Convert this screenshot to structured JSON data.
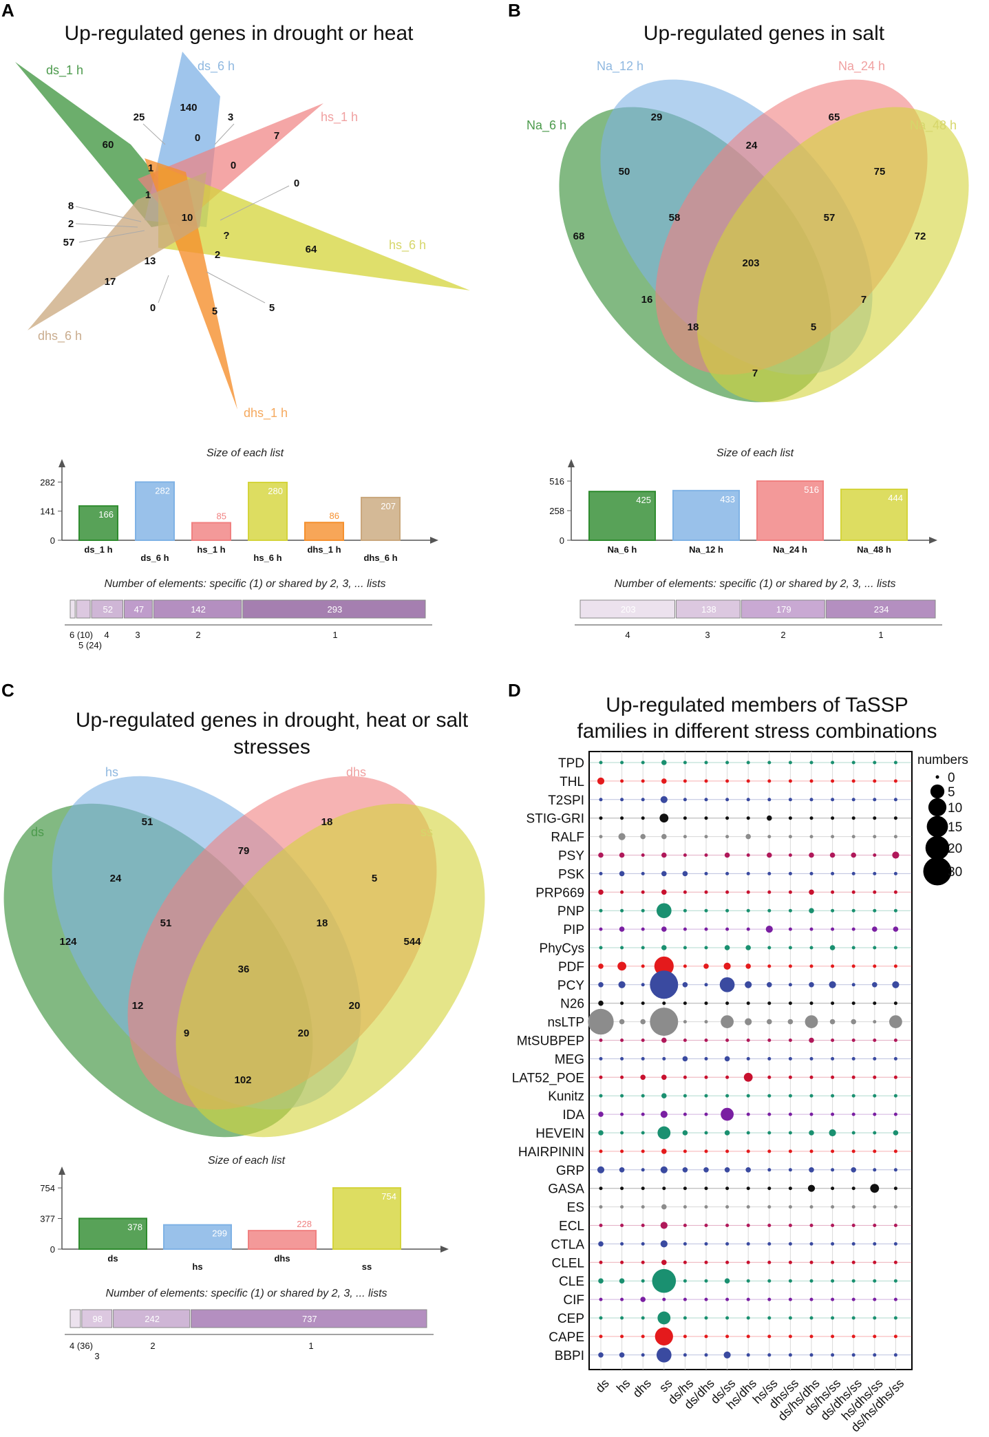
{
  "panels": {
    "A": {
      "label": "A",
      "title": "Up-regulated genes in drought or heat",
      "sets": [
        "ds_1 h",
        "ds_6 h",
        "hs_1 h",
        "hs_6 h",
        "dhs_1 h",
        "dhs_6 h"
      ],
      "counts": [
        "60",
        "25",
        "140",
        "3",
        "7",
        "0",
        "0",
        "0",
        "1",
        "1",
        "10",
        "?",
        "8",
        "2",
        "57",
        "2",
        "64",
        "13",
        "17",
        "0",
        "5",
        "5"
      ]
    },
    "B": {
      "label": "B",
      "title": "Up-regulated genes in salt",
      "sets": [
        "Na_6 h",
        "Na_12 h",
        "Na_24 h",
        "Na_48 h"
      ],
      "counts": [
        "68",
        "29",
        "65",
        "72",
        "50",
        "24",
        "75",
        "58",
        "57",
        "203",
        "16",
        "7",
        "18",
        "5",
        "7"
      ]
    },
    "C": {
      "label": "C",
      "title_line1": "Up-regulated genes in drought, heat or salt",
      "title_line2": "stresses",
      "sets": [
        "ds",
        "hs",
        "dhs",
        "ss"
      ],
      "counts": [
        "124",
        "51",
        "18",
        "544",
        "24",
        "79",
        "5",
        "51",
        "18",
        "36",
        "12",
        "20",
        "9",
        "20",
        "102"
      ]
    },
    "D": {
      "label": "D",
      "title_line1": "Up-regulated members of TaSSP",
      "title_line2": "families in different stress combinations"
    }
  },
  "chart_data": [
    {
      "type": "bar",
      "panel": "A",
      "title": "Size of each list",
      "categories": [
        "ds_1 h",
        "ds_6 h",
        "hs_1 h",
        "hs_6 h",
        "dhs_1 h",
        "dhs_6 h"
      ],
      "values": [
        166,
        282,
        85,
        280,
        86,
        207
      ],
      "yticks": [
        0,
        141,
        282
      ],
      "ylim": [
        0,
        300
      ],
      "colors": [
        "#2e8b2e",
        "#7fb2e5",
        "#f08080",
        "#d4d43a",
        "#f5902e",
        "#c9a77c"
      ]
    },
    {
      "type": "bar",
      "panel": "A",
      "title": "Number of elements: specific (1) or shared by 2, 3, ... lists",
      "categories": [
        "6",
        "5",
        "4",
        "3",
        "2",
        "1"
      ],
      "values": [
        10,
        24,
        52,
        47,
        142,
        293
      ],
      "shown_labels": [
        "",
        "",
        "52",
        "47",
        "142",
        "293"
      ],
      "axis_labels": [
        "6 (10)",
        "5 (24)",
        "4",
        "3",
        "2",
        "1"
      ]
    },
    {
      "type": "bar",
      "panel": "B",
      "title": "Size of each list",
      "categories": [
        "Na_6 h",
        "Na_12 h",
        "Na_24 h",
        "Na_48 h"
      ],
      "values": [
        425,
        433,
        516,
        444
      ],
      "yticks": [
        0,
        258,
        516
      ],
      "ylim": [
        0,
        540
      ],
      "colors": [
        "#2e8b2e",
        "#7fb2e5",
        "#f08080",
        "#d4d43a"
      ]
    },
    {
      "type": "bar",
      "panel": "B",
      "title": "Number of elements: specific (1) or shared by 2, 3, ... lists",
      "categories": [
        "4",
        "3",
        "2",
        "1"
      ],
      "values": [
        203,
        138,
        179,
        234
      ],
      "shown_labels": [
        "203",
        "138",
        "179",
        "234"
      ],
      "axis_labels": [
        "4",
        "3",
        "2",
        "1"
      ]
    },
    {
      "type": "bar",
      "panel": "C",
      "title": "Size of each list",
      "categories": [
        "ds",
        "hs",
        "dhs",
        "ss"
      ],
      "values": [
        378,
        299,
        228,
        754
      ],
      "yticks": [
        0,
        377,
        754
      ],
      "ylim": [
        0,
        780
      ],
      "colors": [
        "#2e8b2e",
        "#7fb2e5",
        "#f08080",
        "#d4d43a"
      ]
    },
    {
      "type": "bar",
      "panel": "C",
      "title": "Number of elements: specific (1) or shared by 2, 3, ... lists",
      "categories": [
        "4",
        "3",
        "2",
        "1"
      ],
      "values": [
        36,
        98,
        242,
        737
      ],
      "shown_labels": [
        "",
        "98",
        "242",
        "737"
      ],
      "axis_labels": [
        "4 (36)",
        "3",
        "2",
        "1"
      ]
    },
    {
      "type": "scatter",
      "panel": "D",
      "title": "Up-regulated members of TaSSP families in different stress combinations",
      "columns": [
        "ds",
        "hs",
        "dhs",
        "ss",
        "ds/hs",
        "ds/dhs",
        "ds/ss",
        "hs/dhs",
        "hs/ss",
        "dhs/ss",
        "ds/hs/dhs",
        "ds/hs/ss",
        "ds/dhs/ss",
        "hs/dhs/ss",
        "ds/hs/dhs/ss"
      ],
      "rows": [
        "TPD",
        "THL",
        "T2SPI",
        "STIG-GRI",
        "RALF",
        "PSY",
        "PSK",
        "PRP669",
        "PNP",
        "PIP",
        "PhyCys",
        "PDF",
        "PCY",
        "N26",
        "nsLTP",
        "MtSUBPEP",
        "MEG",
        "LAT52_POE",
        "Kunitz",
        "IDA",
        "HEVEIN",
        "HAIRPININ",
        "GRP",
        "GASA",
        "ES",
        "ECL",
        "CTLA",
        "CLEL",
        "CLE",
        "CIF",
        "CEP",
        "CAPE",
        "BBPI"
      ],
      "row_colors": [
        "#1a9070",
        "#e41a1c",
        "#3a4aa0",
        "#111111",
        "#8c8c8c",
        "#b0185a",
        "#3a4aa0",
        "#c8102e",
        "#1a9070",
        "#7a1fa2",
        "#1a9070",
        "#e41a1c",
        "#3a4aa0",
        "#111111",
        "#8c8c8c",
        "#b0185a",
        "#3a4aa0",
        "#c8102e",
        "#1a9070",
        "#7a1fa2",
        "#1a9070",
        "#e41a1c",
        "#3a4aa0",
        "#111111",
        "#8c8c8c",
        "#b0185a",
        "#3a4aa0",
        "#c8102e",
        "#1a9070",
        "#7a1fa2",
        "#1a9070",
        "#e41a1c",
        "#3a4aa0"
      ],
      "values": [
        [
          0,
          0,
          0,
          1,
          0,
          0,
          0,
          0,
          0,
          0,
          0,
          0,
          0,
          0,
          0
        ],
        [
          2,
          0,
          0,
          1,
          0,
          0,
          0,
          0,
          0,
          0,
          0,
          0,
          0,
          0,
          0
        ],
        [
          0,
          0,
          0,
          2,
          0,
          0,
          0,
          0,
          0,
          0,
          0,
          0,
          0,
          0,
          0
        ],
        [
          0,
          0,
          0,
          3,
          0,
          0,
          0,
          0,
          1,
          0,
          0,
          0,
          0,
          0,
          0
        ],
        [
          0,
          2,
          1,
          1,
          0,
          0,
          0,
          1,
          0,
          0,
          0,
          0,
          0,
          0,
          0
        ],
        [
          1,
          1,
          0,
          1,
          0,
          0,
          1,
          0,
          1,
          0,
          1,
          1,
          1,
          0,
          2
        ],
        [
          0,
          1,
          0,
          1,
          1,
          0,
          0,
          0,
          0,
          0,
          0,
          0,
          0,
          0,
          0
        ],
        [
          1,
          0,
          0,
          1,
          0,
          0,
          0,
          0,
          0,
          0,
          1,
          0,
          0,
          0,
          0
        ],
        [
          0,
          0,
          0,
          6,
          0,
          0,
          0,
          0,
          0,
          0,
          1,
          0,
          0,
          0,
          0
        ],
        [
          0,
          1,
          0,
          1,
          0,
          0,
          0,
          0,
          2,
          0,
          0,
          0,
          0,
          1,
          1
        ],
        [
          0,
          0,
          0,
          1,
          0,
          0,
          1,
          1,
          0,
          0,
          0,
          1,
          0,
          0,
          0
        ],
        [
          1,
          3,
          0,
          12,
          0,
          1,
          2,
          1,
          0,
          0,
          0,
          0,
          0,
          0,
          0
        ],
        [
          1,
          2,
          0,
          30,
          1,
          0,
          6,
          2,
          1,
          0,
          1,
          2,
          0,
          1,
          2
        ],
        [
          1,
          0,
          0,
          0,
          0,
          0,
          0,
          0,
          0,
          0,
          0,
          0,
          0,
          0,
          0
        ],
        [
          24,
          1,
          1,
          30,
          0,
          0,
          4,
          2,
          1,
          1,
          4,
          1,
          1,
          0,
          4
        ],
        [
          0,
          0,
          0,
          1,
          0,
          0,
          0,
          0,
          0,
          0,
          1,
          0,
          0,
          0,
          0
        ],
        [
          0,
          0,
          0,
          0,
          1,
          0,
          1,
          0,
          0,
          0,
          0,
          0,
          0,
          0,
          0
        ],
        [
          0,
          0,
          1,
          1,
          0,
          0,
          0,
          3,
          0,
          0,
          0,
          0,
          0,
          0,
          0
        ],
        [
          0,
          0,
          0,
          1,
          0,
          0,
          0,
          0,
          0,
          0,
          0,
          0,
          0,
          0,
          0
        ],
        [
          1,
          0,
          0,
          2,
          0,
          0,
          4,
          0,
          0,
          0,
          0,
          0,
          0,
          0,
          0
        ],
        [
          1,
          0,
          0,
          4,
          1,
          0,
          1,
          0,
          0,
          0,
          1,
          2,
          0,
          0,
          1
        ],
        [
          0,
          0,
          0,
          1,
          0,
          0,
          0,
          0,
          0,
          0,
          0,
          0,
          0,
          0,
          0
        ],
        [
          2,
          1,
          0,
          2,
          1,
          1,
          1,
          1,
          0,
          0,
          1,
          0,
          1,
          0,
          0
        ],
        [
          0,
          0,
          0,
          0,
          0,
          0,
          0,
          0,
          0,
          0,
          2,
          0,
          0,
          3,
          0
        ],
        [
          0,
          0,
          0,
          1,
          0,
          0,
          0,
          0,
          0,
          0,
          0,
          0,
          0,
          0,
          0
        ],
        [
          0,
          0,
          0,
          2,
          0,
          0,
          0,
          0,
          0,
          0,
          0,
          0,
          0,
          0,
          0
        ],
        [
          1,
          0,
          0,
          2,
          0,
          0,
          0,
          0,
          0,
          0,
          0,
          0,
          0,
          0,
          0
        ],
        [
          0,
          0,
          0,
          1,
          0,
          0,
          0,
          0,
          0,
          0,
          0,
          0,
          0,
          0,
          0
        ],
        [
          1,
          1,
          0,
          20,
          0,
          0,
          1,
          0,
          0,
          0,
          0,
          0,
          0,
          0,
          0
        ],
        [
          0,
          0,
          1,
          0,
          0,
          0,
          0,
          0,
          0,
          0,
          0,
          0,
          0,
          0,
          0
        ],
        [
          0,
          0,
          0,
          4,
          0,
          0,
          0,
          0,
          0,
          0,
          0,
          0,
          0,
          0,
          0
        ],
        [
          0,
          0,
          0,
          10,
          0,
          0,
          0,
          0,
          0,
          0,
          0,
          0,
          0,
          0,
          0
        ],
        [
          1,
          1,
          0,
          6,
          0,
          0,
          2,
          0,
          0,
          0,
          0,
          0,
          0,
          0,
          0
        ]
      ],
      "legend_title": "numbers",
      "legend_values": [
        0,
        5,
        10,
        15,
        20,
        30
      ],
      "legend_labels": [
        "0",
        "5",
        "10",
        "15",
        "20",
        "30"
      ]
    }
  ]
}
